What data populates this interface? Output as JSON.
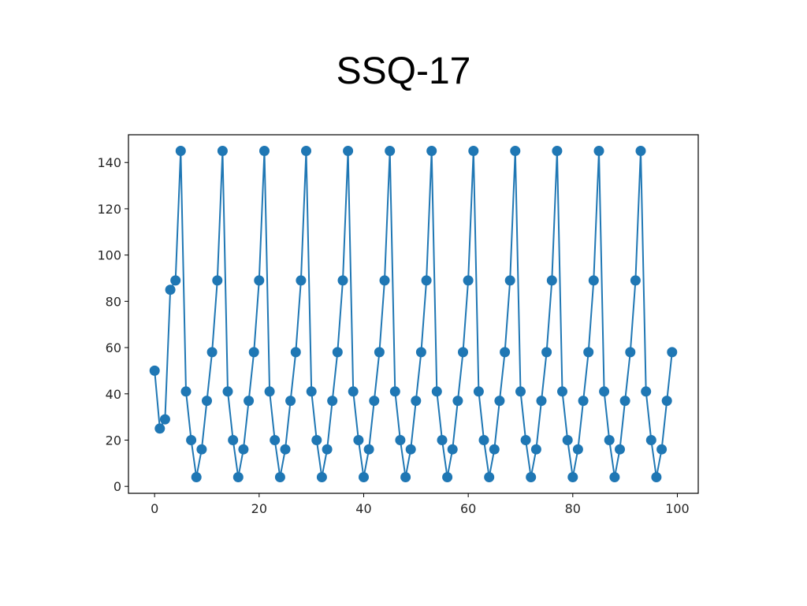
{
  "slide": {
    "title": "SSQ-17"
  },
  "colors": {
    "series": "#1f77b4",
    "axes": "#000000",
    "background": "#ffffff"
  },
  "chart_data": {
    "type": "line",
    "title": "",
    "xlabel": "",
    "ylabel": "",
    "marker": "circle",
    "grid": false,
    "xlim": [
      -5,
      104
    ],
    "ylim": [
      -3,
      152
    ],
    "xticks": [
      0,
      20,
      40,
      60,
      80,
      100
    ],
    "yticks": [
      0,
      20,
      40,
      60,
      80,
      100,
      120,
      140
    ],
    "x": [
      0,
      1,
      2,
      3,
      4,
      5,
      6,
      7,
      8,
      9,
      10,
      11,
      12,
      13,
      14,
      15,
      16,
      17,
      18,
      19,
      20,
      21,
      22,
      23,
      24,
      25,
      26,
      27,
      28,
      29,
      30,
      31,
      32,
      33,
      34,
      35,
      36,
      37,
      38,
      39,
      40,
      41,
      42,
      43,
      44,
      45,
      46,
      47,
      48,
      49,
      50,
      51,
      52,
      53,
      54,
      55,
      56,
      57,
      58,
      59,
      60,
      61,
      62,
      63,
      64,
      65,
      66,
      67,
      68,
      69,
      70,
      71,
      72,
      73,
      74,
      75,
      76,
      77,
      78,
      79,
      80,
      81,
      82,
      83,
      84,
      85,
      86,
      87,
      88,
      89,
      90,
      91,
      92,
      93,
      94,
      95,
      96,
      97,
      98,
      99
    ],
    "y": [
      50,
      25,
      29,
      85,
      89,
      145,
      41,
      20,
      4,
      16,
      37,
      58,
      89,
      145,
      41,
      20,
      4,
      16,
      37,
      58,
      89,
      145,
      41,
      20,
      4,
      16,
      37,
      58,
      89,
      145,
      41,
      20,
      4,
      16,
      37,
      58,
      89,
      145,
      41,
      20,
      4,
      16,
      37,
      58,
      89,
      145,
      41,
      20,
      4,
      16,
      37,
      58,
      89,
      145,
      41,
      20,
      4,
      16,
      37,
      58,
      89,
      145,
      41,
      20,
      4,
      16,
      37,
      58,
      89,
      145,
      41,
      20,
      4,
      16,
      37,
      58,
      89,
      145,
      41,
      20,
      4,
      16,
      37,
      58,
      89,
      145,
      41,
      20,
      4,
      16,
      37,
      58,
      89,
      145,
      41,
      20,
      4,
      16,
      37,
      58
    ]
  }
}
